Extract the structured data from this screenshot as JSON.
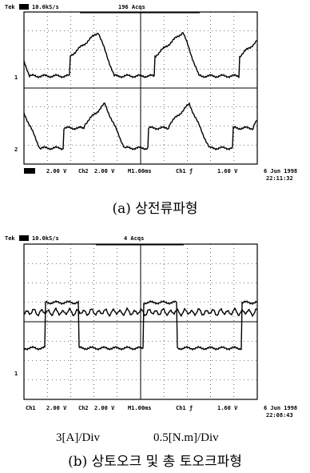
{
  "scope_a": {
    "header": {
      "brand": "Tek",
      "rate": "10.0kS/s",
      "acqs": "196 Acqs"
    },
    "markers": [
      "1",
      "2"
    ],
    "footer": {
      "ch1_scale": "2.00 V",
      "ch2": "Ch2",
      "ch2_scale": "2.00 V",
      "time": "M1.00ms",
      "trigger": "Ch1 ƒ",
      "trigger_level": "1.60 V",
      "date": "6 Jun 1998",
      "clock": "22:11:32"
    },
    "caption": "(a) 상전류파형"
  },
  "scope_b": {
    "header": {
      "brand": "Tek",
      "rate": "10.0kS/s",
      "acqs": "4 Acqs"
    },
    "markers": [
      "1"
    ],
    "footer": {
      "ch1": "Ch1",
      "ch1_scale": "2.00 V",
      "ch2": "Ch2",
      "ch2_scale": "2.00 V",
      "time": "M1.00ms",
      "trigger": "Ch1 ƒ",
      "trigger_level": "1.60 V",
      "date": "6 Jun 1998",
      "clock": "22:08:43"
    },
    "scales": [
      "3[A]/Div",
      "0.5[N.m]/Div"
    ],
    "caption": "(b) 상토오크 및 총 토오크파형"
  }
}
